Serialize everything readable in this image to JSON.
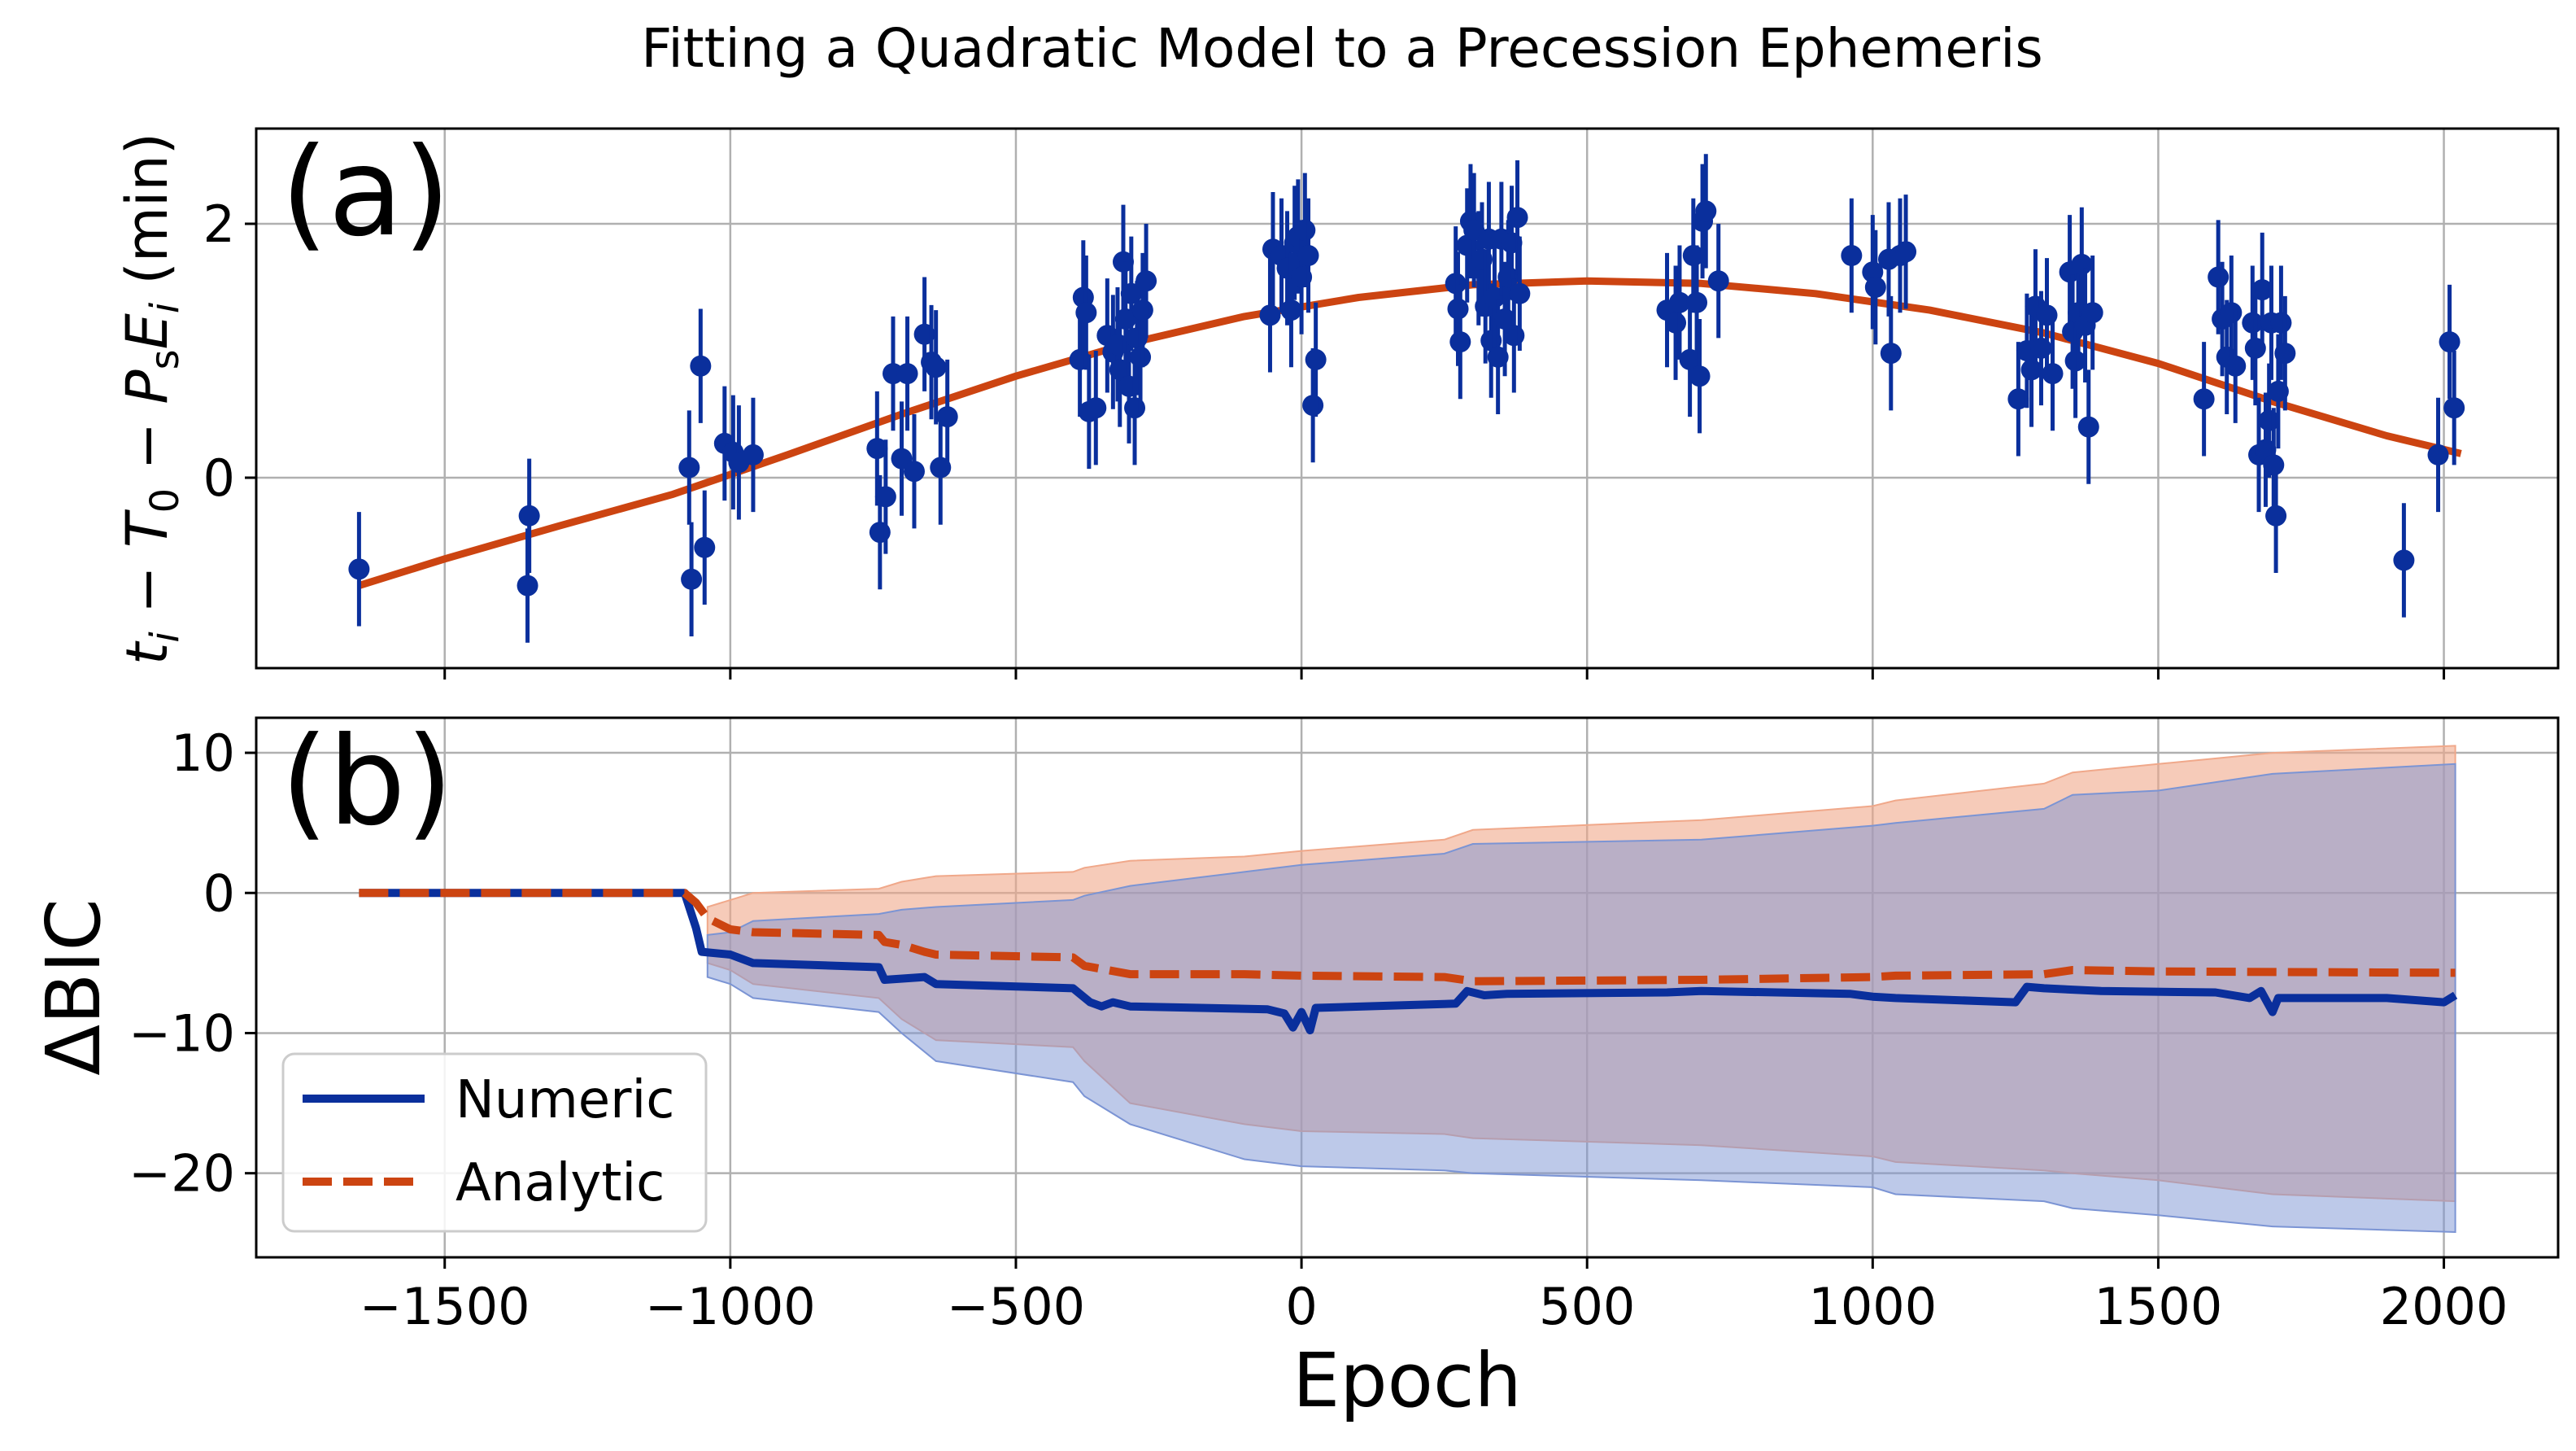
{
  "figure": {
    "title": "Fitting a Quadratic Model to a Precession Ephemeris"
  },
  "colors": {
    "data_blue": "#0a2f9c",
    "fit_orange": "#cc4411",
    "numeric_blue": "#0a2f9c",
    "analytic_orange": "#cc4411",
    "numeric_band": "#7b94d4",
    "analytic_band": "#f0a88a",
    "grid": "#b0b0b0"
  },
  "chart_data": [
    {
      "id": "a",
      "panel_label": "(a)",
      "type": "scatter",
      "title": "",
      "xlabel": "",
      "ylabel": "t_i − T_0 − P_s E_i (min)",
      "xlim": [
        -1830,
        2200
      ],
      "ylim": [
        -1.5,
        2.75
      ],
      "yticks": [
        0,
        2
      ],
      "grid": true,
      "points": [
        {
          "x": -1650,
          "y": -0.72,
          "err": 0.45
        },
        {
          "x": -1352,
          "y": -0.3,
          "err": 0.45
        },
        {
          "x": -1355,
          "y": -0.85,
          "err": 0.45
        },
        {
          "x": -1072,
          "y": 0.08,
          "err": 0.45
        },
        {
          "x": -1068,
          "y": -0.8,
          "err": 0.45
        },
        {
          "x": -1052,
          "y": 0.88,
          "err": 0.45
        },
        {
          "x": -1045,
          "y": -0.55,
          "err": 0.45
        },
        {
          "x": -1010,
          "y": 0.27,
          "err": 0.45
        },
        {
          "x": -995,
          "y": 0.2,
          "err": 0.45
        },
        {
          "x": -985,
          "y": 0.12,
          "err": 0.45
        },
        {
          "x": -960,
          "y": 0.18,
          "err": 0.45
        },
        {
          "x": -743,
          "y": 0.23,
          "err": 0.45
        },
        {
          "x": -738,
          "y": -0.43,
          "err": 0.45
        },
        {
          "x": -728,
          "y": -0.15,
          "err": 0.45
        },
        {
          "x": -715,
          "y": 0.82,
          "err": 0.45
        },
        {
          "x": -700,
          "y": 0.15,
          "err": 0.45
        },
        {
          "x": -690,
          "y": 0.82,
          "err": 0.45
        },
        {
          "x": -678,
          "y": 0.05,
          "err": 0.45
        },
        {
          "x": -660,
          "y": 1.13,
          "err": 0.45
        },
        {
          "x": -648,
          "y": 0.91,
          "err": 0.45
        },
        {
          "x": -640,
          "y": 0.87,
          "err": 0.45
        },
        {
          "x": -632,
          "y": 0.08,
          "err": 0.45
        },
        {
          "x": -620,
          "y": 0.48,
          "err": 0.45
        },
        {
          "x": -388,
          "y": 0.93,
          "err": 0.45
        },
        {
          "x": -382,
          "y": 1.42,
          "err": 0.45
        },
        {
          "x": -377,
          "y": 1.3,
          "err": 0.45
        },
        {
          "x": -372,
          "y": 0.52,
          "err": 0.45
        },
        {
          "x": -360,
          "y": 0.55,
          "err": 0.45
        },
        {
          "x": -340,
          "y": 1.12,
          "err": 0.45
        },
        {
          "x": -330,
          "y": 0.99,
          "err": 0.45
        },
        {
          "x": -322,
          "y": 1.05,
          "err": 0.45
        },
        {
          "x": -318,
          "y": 0.85,
          "err": 0.45
        },
        {
          "x": -312,
          "y": 1.7,
          "err": 0.45
        },
        {
          "x": -308,
          "y": 1.25,
          "err": 0.45
        },
        {
          "x": -302,
          "y": 0.72,
          "err": 0.45
        },
        {
          "x": -298,
          "y": 1.45,
          "err": 0.45
        },
        {
          "x": -292,
          "y": 0.55,
          "err": 0.45
        },
        {
          "x": -288,
          "y": 1.1,
          "err": 0.45
        },
        {
          "x": -282,
          "y": 0.95,
          "err": 0.45
        },
        {
          "x": -278,
          "y": 1.32,
          "err": 0.45
        },
        {
          "x": -272,
          "y": 1.55,
          "err": 0.45
        },
        {
          "x": -55,
          "y": 1.28,
          "err": 0.45
        },
        {
          "x": -50,
          "y": 1.8,
          "err": 0.45
        },
        {
          "x": -35,
          "y": 1.75,
          "err": 0.45
        },
        {
          "x": -25,
          "y": 1.65,
          "err": 0.45
        },
        {
          "x": -18,
          "y": 1.32,
          "err": 0.45
        },
        {
          "x": -12,
          "y": 1.85,
          "err": 0.45
        },
        {
          "x": -6,
          "y": 1.9,
          "err": 0.45
        },
        {
          "x": 0,
          "y": 1.58,
          "err": 0.45
        },
        {
          "x": 6,
          "y": 1.95,
          "err": 0.45
        },
        {
          "x": 12,
          "y": 1.75,
          "err": 0.45
        },
        {
          "x": 20,
          "y": 0.57,
          "err": 0.45
        },
        {
          "x": 25,
          "y": 0.93,
          "err": 0.45
        },
        {
          "x": 270,
          "y": 1.53,
          "err": 0.45
        },
        {
          "x": 274,
          "y": 1.33,
          "err": 0.45
        },
        {
          "x": 278,
          "y": 1.07,
          "err": 0.45
        },
        {
          "x": 290,
          "y": 1.83,
          "err": 0.45
        },
        {
          "x": 296,
          "y": 2.02,
          "err": 0.45
        },
        {
          "x": 302,
          "y": 1.95,
          "err": 0.45
        },
        {
          "x": 310,
          "y": 1.65,
          "err": 0.45
        },
        {
          "x": 316,
          "y": 1.72,
          "err": 0.45
        },
        {
          "x": 322,
          "y": 1.35,
          "err": 0.45
        },
        {
          "x": 328,
          "y": 1.88,
          "err": 0.45
        },
        {
          "x": 332,
          "y": 1.08,
          "err": 0.45
        },
        {
          "x": 338,
          "y": 1.42,
          "err": 0.45
        },
        {
          "x": 344,
          "y": 0.95,
          "err": 0.45
        },
        {
          "x": 350,
          "y": 1.88,
          "err": 0.45
        },
        {
          "x": 356,
          "y": 1.25,
          "err": 0.45
        },
        {
          "x": 362,
          "y": 1.58,
          "err": 0.45
        },
        {
          "x": 368,
          "y": 1.85,
          "err": 0.45
        },
        {
          "x": 372,
          "y": 1.12,
          "err": 0.45
        },
        {
          "x": 378,
          "y": 2.05,
          "err": 0.45
        },
        {
          "x": 382,
          "y": 1.45,
          "err": 0.45
        },
        {
          "x": 640,
          "y": 1.32,
          "err": 0.45
        },
        {
          "x": 655,
          "y": 1.22,
          "err": 0.45
        },
        {
          "x": 662,
          "y": 1.38,
          "err": 0.45
        },
        {
          "x": 680,
          "y": 0.93,
          "err": 0.45
        },
        {
          "x": 686,
          "y": 1.75,
          "err": 0.45
        },
        {
          "x": 692,
          "y": 1.38,
          "err": 0.45
        },
        {
          "x": 697,
          "y": 0.8,
          "err": 0.45
        },
        {
          "x": 702,
          "y": 2.02,
          "err": 0.45
        },
        {
          "x": 708,
          "y": 2.1,
          "err": 0.45
        },
        {
          "x": 730,
          "y": 1.55,
          "err": 0.45
        },
        {
          "x": 963,
          "y": 1.75,
          "err": 0.45
        },
        {
          "x": 1000,
          "y": 1.62,
          "err": 0.45
        },
        {
          "x": 1005,
          "y": 1.5,
          "err": 0.45
        },
        {
          "x": 1028,
          "y": 1.72,
          "err": 0.45
        },
        {
          "x": 1032,
          "y": 0.98,
          "err": 0.45
        },
        {
          "x": 1048,
          "y": 1.75,
          "err": 0.45
        },
        {
          "x": 1058,
          "y": 1.78,
          "err": 0.45
        },
        {
          "x": 1255,
          "y": 0.62,
          "err": 0.45
        },
        {
          "x": 1270,
          "y": 1.0,
          "err": 0.45
        },
        {
          "x": 1278,
          "y": 0.85,
          "err": 0.45
        },
        {
          "x": 1285,
          "y": 1.35,
          "err": 0.45
        },
        {
          "x": 1295,
          "y": 1.02,
          "err": 0.45
        },
        {
          "x": 1305,
          "y": 1.28,
          "err": 0.45
        },
        {
          "x": 1315,
          "y": 0.82,
          "err": 0.45
        },
        {
          "x": 1345,
          "y": 1.62,
          "err": 0.45
        },
        {
          "x": 1350,
          "y": 1.15,
          "err": 0.45
        },
        {
          "x": 1355,
          "y": 0.92,
          "err": 0.45
        },
        {
          "x": 1360,
          "y": 1.3,
          "err": 0.45
        },
        {
          "x": 1366,
          "y": 1.68,
          "err": 0.45
        },
        {
          "x": 1372,
          "y": 1.2,
          "err": 0.45
        },
        {
          "x": 1378,
          "y": 0.4,
          "err": 0.45
        },
        {
          "x": 1385,
          "y": 1.3,
          "err": 0.45
        },
        {
          "x": 1580,
          "y": 0.62,
          "err": 0.45
        },
        {
          "x": 1605,
          "y": 1.58,
          "err": 0.45
        },
        {
          "x": 1612,
          "y": 1.25,
          "err": 0.45
        },
        {
          "x": 1620,
          "y": 0.95,
          "err": 0.45
        },
        {
          "x": 1628,
          "y": 1.3,
          "err": 0.45
        },
        {
          "x": 1635,
          "y": 0.88,
          "err": 0.45
        },
        {
          "x": 1665,
          "y": 1.22,
          "err": 0.45
        },
        {
          "x": 1670,
          "y": 1.02,
          "err": 0.45
        },
        {
          "x": 1676,
          "y": 0.18,
          "err": 0.45
        },
        {
          "x": 1682,
          "y": 1.48,
          "err": 0.45
        },
        {
          "x": 1688,
          "y": 0.22,
          "err": 0.45
        },
        {
          "x": 1694,
          "y": 0.45,
          "err": 0.45
        },
        {
          "x": 1698,
          "y": 1.22,
          "err": 0.45
        },
        {
          "x": 1702,
          "y": 0.1,
          "err": 0.45
        },
        {
          "x": 1706,
          "y": -0.3,
          "err": 0.45
        },
        {
          "x": 1710,
          "y": 0.68,
          "err": 0.45
        },
        {
          "x": 1715,
          "y": 1.22,
          "err": 0.45
        },
        {
          "x": 1722,
          "y": 0.98,
          "err": 0.45
        },
        {
          "x": 1930,
          "y": -0.65,
          "err": 0.45
        },
        {
          "x": 1990,
          "y": 0.18,
          "err": 0.45
        },
        {
          "x": 2010,
          "y": 1.07,
          "err": 0.45
        },
        {
          "x": 2018,
          "y": 0.55,
          "err": 0.45
        }
      ],
      "fit": {
        "x": [
          -1650,
          -1500,
          -1300,
          -1100,
          -900,
          -700,
          -500,
          -300,
          -100,
          100,
          300,
          500,
          700,
          900,
          1100,
          1300,
          1500,
          1700,
          1900,
          2030
        ],
        "y": [
          -0.85,
          -0.64,
          -0.38,
          -0.13,
          0.18,
          0.5,
          0.8,
          1.06,
          1.27,
          1.42,
          1.52,
          1.55,
          1.53,
          1.45,
          1.32,
          1.14,
          0.9,
          0.6,
          0.33,
          0.19
        ]
      }
    },
    {
      "id": "b",
      "panel_label": "(b)",
      "type": "line",
      "title": "",
      "xlabel": "Epoch",
      "ylabel": "ΔBIC",
      "xlim": [
        -1830,
        2200
      ],
      "ylim": [
        -26,
        12.5
      ],
      "xticks": [
        -1500,
        -1000,
        -500,
        0,
        500,
        1000,
        1500,
        2000
      ],
      "xtick_labels": [
        "−1500",
        "−1000",
        "−500",
        "0",
        "500",
        "1000",
        "1500",
        "2000"
      ],
      "yticks": [
        10,
        0,
        -10,
        -20
      ],
      "ytick_labels": [
        "10",
        "0",
        "−10",
        "−20"
      ],
      "grid": true,
      "legend": {
        "position": "lower-left",
        "entries": [
          "Numeric",
          "Analytic"
        ]
      },
      "series": [
        {
          "name": "Numeric",
          "style": "solid",
          "x": [
            -1650,
            -1080,
            -1060,
            -1050,
            -1000,
            -960,
            -740,
            -730,
            -660,
            -640,
            -400,
            -370,
            -350,
            -330,
            -300,
            -60,
            -30,
            -15,
            0,
            15,
            25,
            270,
            290,
            320,
            360,
            640,
            700,
            960,
            1000,
            1040,
            1250,
            1270,
            1300,
            1400,
            1600,
            1660,
            1680,
            1700,
            1710,
            1900,
            2000,
            2020
          ],
          "y": [
            0,
            0,
            -2.5,
            -4.2,
            -4.4,
            -5.0,
            -5.3,
            -6.2,
            -6.0,
            -6.5,
            -6.8,
            -7.8,
            -8.1,
            -7.8,
            -8.1,
            -8.3,
            -8.6,
            -9.6,
            -8.5,
            -9.8,
            -8.2,
            -7.9,
            -7.0,
            -7.3,
            -7.2,
            -7.1,
            -7.0,
            -7.2,
            -7.4,
            -7.5,
            -7.8,
            -6.7,
            -6.8,
            -7.0,
            -7.1,
            -7.5,
            -7.0,
            -8.5,
            -7.5,
            -7.5,
            -7.8,
            -7.3
          ]
        },
        {
          "name": "Analytic",
          "style": "dashed",
          "x": [
            -1650,
            -1080,
            -1060,
            -1040,
            -1000,
            -960,
            -740,
            -730,
            -700,
            -660,
            -640,
            -400,
            -380,
            -300,
            -100,
            0,
            250,
            300,
            700,
            1000,
            1040,
            1300,
            1350,
            1500,
            2020
          ],
          "y": [
            0,
            0,
            -0.7,
            -1.8,
            -2.6,
            -2.8,
            -3.0,
            -3.5,
            -3.7,
            -4.2,
            -4.4,
            -4.6,
            -5.2,
            -5.8,
            -5.8,
            -5.9,
            -6.0,
            -6.3,
            -6.2,
            -6.0,
            -5.9,
            -5.8,
            -5.5,
            -5.6,
            -5.7
          ]
        }
      ],
      "bands": [
        {
          "name": "Analytic uncertainty",
          "x": [
            -1040,
            -1000,
            -960,
            -740,
            -700,
            -640,
            -400,
            -380,
            -300,
            -100,
            0,
            250,
            300,
            700,
            1000,
            1040,
            1300,
            1350,
            1500,
            1700,
            2020
          ],
          "upper": [
            -1.0,
            -0.5,
            0.0,
            0.3,
            0.8,
            1.2,
            1.5,
            1.8,
            2.3,
            2.6,
            3.0,
            3.8,
            4.5,
            5.2,
            6.2,
            6.6,
            7.8,
            8.6,
            9.2,
            10.0,
            10.5
          ],
          "lower": [
            -5.0,
            -5.5,
            -6.5,
            -7.5,
            -9.0,
            -10.5,
            -11.0,
            -12.0,
            -15.0,
            -16.5,
            -17.0,
            -17.2,
            -17.5,
            -18.0,
            -18.8,
            -19.2,
            -19.8,
            -20.0,
            -20.5,
            -21.5,
            -22.0
          ]
        },
        {
          "name": "Numeric uncertainty",
          "x": [
            -1040,
            -1000,
            -960,
            -740,
            -700,
            -640,
            -400,
            -380,
            -300,
            -100,
            0,
            250,
            300,
            700,
            1000,
            1040,
            1300,
            1350,
            1500,
            1700,
            2020
          ],
          "upper": [
            -3.0,
            -2.8,
            -2.0,
            -1.5,
            -1.2,
            -1.0,
            -0.5,
            -0.2,
            0.5,
            1.5,
            2.0,
            2.8,
            3.5,
            3.8,
            4.8,
            5.0,
            6.0,
            7.0,
            7.3,
            8.5,
            9.2
          ],
          "lower": [
            -6.0,
            -6.5,
            -7.5,
            -8.5,
            -10.0,
            -12.0,
            -13.5,
            -14.5,
            -16.5,
            -19.0,
            -19.5,
            -19.8,
            -20.0,
            -20.5,
            -21.0,
            -21.5,
            -22.0,
            -22.5,
            -23.0,
            -23.8,
            -24.2
          ]
        }
      ]
    }
  ]
}
